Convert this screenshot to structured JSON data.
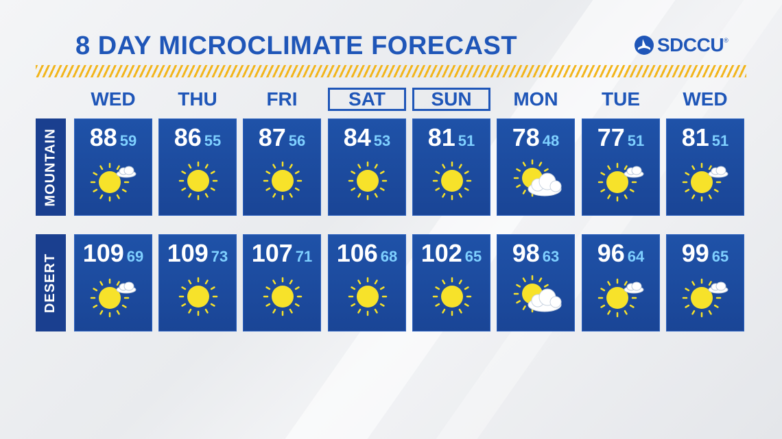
{
  "title": "8 DAY MICROCLIMATE FORECAST",
  "sponsor": {
    "name": "SDCCU",
    "trademark": "®"
  },
  "colors": {
    "brand_blue": "#1f56b8",
    "panel_blue": "#1a4596",
    "low_temp": "#7fd0ff",
    "sun": "#f7e22a",
    "accent_hatch": "#f2b51c"
  },
  "days": [
    {
      "label": "WED",
      "boxed": false
    },
    {
      "label": "THU",
      "boxed": false
    },
    {
      "label": "FRI",
      "boxed": false
    },
    {
      "label": "SAT",
      "boxed": true
    },
    {
      "label": "SUN",
      "boxed": true
    },
    {
      "label": "MON",
      "boxed": false
    },
    {
      "label": "TUE",
      "boxed": false
    },
    {
      "label": "WED",
      "boxed": false
    }
  ],
  "rows": [
    {
      "label": "MOUNTAIN",
      "forecast": [
        {
          "high": "88",
          "low": "59",
          "icon": "sun-small-cloud-icon"
        },
        {
          "high": "86",
          "low": "55",
          "icon": "sun-icon"
        },
        {
          "high": "87",
          "low": "56",
          "icon": "sun-icon"
        },
        {
          "high": "84",
          "low": "53",
          "icon": "sun-icon"
        },
        {
          "high": "81",
          "low": "51",
          "icon": "sun-icon"
        },
        {
          "high": "78",
          "low": "48",
          "icon": "partly-cloudy-icon"
        },
        {
          "high": "77",
          "low": "51",
          "icon": "sun-small-cloud-icon"
        },
        {
          "high": "81",
          "low": "51",
          "icon": "sun-small-cloud-icon"
        }
      ]
    },
    {
      "label": "DESERT",
      "forecast": [
        {
          "high": "109",
          "low": "69",
          "icon": "sun-small-cloud-icon"
        },
        {
          "high": "109",
          "low": "73",
          "icon": "sun-icon"
        },
        {
          "high": "107",
          "low": "71",
          "icon": "sun-icon"
        },
        {
          "high": "106",
          "low": "68",
          "icon": "sun-icon"
        },
        {
          "high": "102",
          "low": "65",
          "icon": "sun-icon"
        },
        {
          "high": "98",
          "low": "63",
          "icon": "partly-cloudy-icon"
        },
        {
          "high": "96",
          "low": "64",
          "icon": "sun-small-cloud-icon"
        },
        {
          "high": "99",
          "low": "65",
          "icon": "sun-small-cloud-icon"
        }
      ]
    }
  ]
}
